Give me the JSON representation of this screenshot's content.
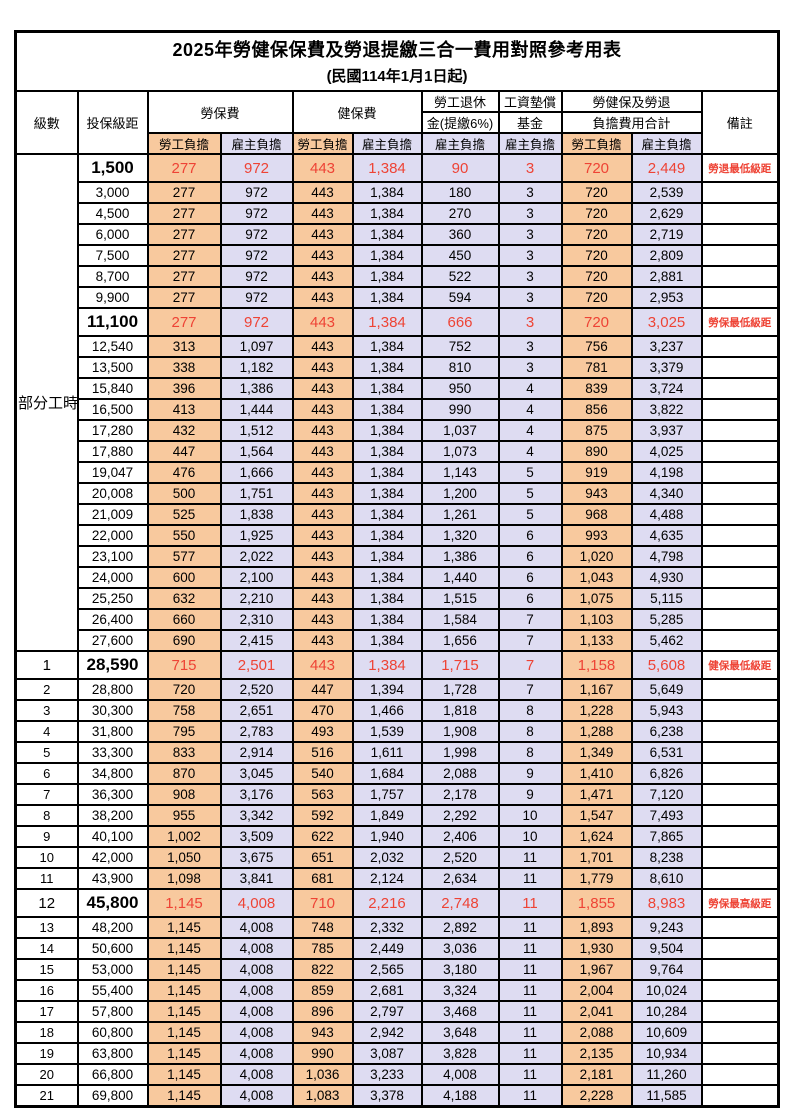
{
  "title": "2025年勞健保保費及勞退提繳三合一費用對照參考用表",
  "subtitle": "(民國114年1月1日起)",
  "header": {
    "level": "級數",
    "bracket": "投保級距",
    "labor": "勞保費",
    "health": "健保費",
    "pension_line1": "勞工退休",
    "pension_line2": "金(提繳6%)",
    "wage_line1": "工資墊償",
    "wage_line2": "基金",
    "total_line1": "勞健保及勞退",
    "total_line2": "負擔費用合計",
    "remark": "備註",
    "employee": "勞工負擔",
    "employer": "雇主負擔"
  },
  "part_time_label": "部分工時",
  "part_time_rowspan": 23,
  "column_fill_pattern": [
    "emp",
    "er",
    "emp",
    "er",
    "er",
    "er",
    "emp",
    "er"
  ],
  "colors": {
    "employee_bg": "#f8c99e",
    "employer_bg": "#dedcf2",
    "highlight_red": "#ee4335",
    "border": "#000000"
  },
  "rows": [
    {
      "level": "",
      "bracket": "1,500",
      "cells": [
        "277",
        "972",
        "443",
        "1,384",
        "90",
        "3",
        "720",
        "2,449"
      ],
      "remark": "勞退最低級距",
      "special": true
    },
    {
      "level": "",
      "bracket": "3,000",
      "cells": [
        "277",
        "972",
        "443",
        "1,384",
        "180",
        "3",
        "720",
        "2,539"
      ],
      "remark": "",
      "special": false
    },
    {
      "level": "",
      "bracket": "4,500",
      "cells": [
        "277",
        "972",
        "443",
        "1,384",
        "270",
        "3",
        "720",
        "2,629"
      ],
      "remark": "",
      "special": false
    },
    {
      "level": "",
      "bracket": "6,000",
      "cells": [
        "277",
        "972",
        "443",
        "1,384",
        "360",
        "3",
        "720",
        "2,719"
      ],
      "remark": "",
      "special": false
    },
    {
      "level": "",
      "bracket": "7,500",
      "cells": [
        "277",
        "972",
        "443",
        "1,384",
        "450",
        "3",
        "720",
        "2,809"
      ],
      "remark": "",
      "special": false
    },
    {
      "level": "",
      "bracket": "8,700",
      "cells": [
        "277",
        "972",
        "443",
        "1,384",
        "522",
        "3",
        "720",
        "2,881"
      ],
      "remark": "",
      "special": false
    },
    {
      "level": "",
      "bracket": "9,900",
      "cells": [
        "277",
        "972",
        "443",
        "1,384",
        "594",
        "3",
        "720",
        "2,953"
      ],
      "remark": "",
      "special": false
    },
    {
      "level": "",
      "bracket": "11,100",
      "cells": [
        "277",
        "972",
        "443",
        "1,384",
        "666",
        "3",
        "720",
        "3,025"
      ],
      "remark": "勞保最低級距",
      "special": true
    },
    {
      "level": "",
      "bracket": "12,540",
      "cells": [
        "313",
        "1,097",
        "443",
        "1,384",
        "752",
        "3",
        "756",
        "3,237"
      ],
      "remark": "",
      "special": false
    },
    {
      "level": "",
      "bracket": "13,500",
      "cells": [
        "338",
        "1,182",
        "443",
        "1,384",
        "810",
        "3",
        "781",
        "3,379"
      ],
      "remark": "",
      "special": false
    },
    {
      "level": "",
      "bracket": "15,840",
      "cells": [
        "396",
        "1,386",
        "443",
        "1,384",
        "950",
        "4",
        "839",
        "3,724"
      ],
      "remark": "",
      "special": false
    },
    {
      "level": "",
      "bracket": "16,500",
      "cells": [
        "413",
        "1,444",
        "443",
        "1,384",
        "990",
        "4",
        "856",
        "3,822"
      ],
      "remark": "",
      "special": false
    },
    {
      "level": "",
      "bracket": "17,280",
      "cells": [
        "432",
        "1,512",
        "443",
        "1,384",
        "1,037",
        "4",
        "875",
        "3,937"
      ],
      "remark": "",
      "special": false
    },
    {
      "level": "",
      "bracket": "17,880",
      "cells": [
        "447",
        "1,564",
        "443",
        "1,384",
        "1,073",
        "4",
        "890",
        "4,025"
      ],
      "remark": "",
      "special": false
    },
    {
      "level": "",
      "bracket": "19,047",
      "cells": [
        "476",
        "1,666",
        "443",
        "1,384",
        "1,143",
        "5",
        "919",
        "4,198"
      ],
      "remark": "",
      "special": false
    },
    {
      "level": "",
      "bracket": "20,008",
      "cells": [
        "500",
        "1,751",
        "443",
        "1,384",
        "1,200",
        "5",
        "943",
        "4,340"
      ],
      "remark": "",
      "special": false
    },
    {
      "level": "",
      "bracket": "21,009",
      "cells": [
        "525",
        "1,838",
        "443",
        "1,384",
        "1,261",
        "5",
        "968",
        "4,488"
      ],
      "remark": "",
      "special": false
    },
    {
      "level": "",
      "bracket": "22,000",
      "cells": [
        "550",
        "1,925",
        "443",
        "1,384",
        "1,320",
        "6",
        "993",
        "4,635"
      ],
      "remark": "",
      "special": false
    },
    {
      "level": "",
      "bracket": "23,100",
      "cells": [
        "577",
        "2,022",
        "443",
        "1,384",
        "1,386",
        "6",
        "1,020",
        "4,798"
      ],
      "remark": "",
      "special": false
    },
    {
      "level": "",
      "bracket": "24,000",
      "cells": [
        "600",
        "2,100",
        "443",
        "1,384",
        "1,440",
        "6",
        "1,043",
        "4,930"
      ],
      "remark": "",
      "special": false
    },
    {
      "level": "",
      "bracket": "25,250",
      "cells": [
        "632",
        "2,210",
        "443",
        "1,384",
        "1,515",
        "6",
        "1,075",
        "5,115"
      ],
      "remark": "",
      "special": false
    },
    {
      "level": "",
      "bracket": "26,400",
      "cells": [
        "660",
        "2,310",
        "443",
        "1,384",
        "1,584",
        "7",
        "1,103",
        "5,285"
      ],
      "remark": "",
      "special": false
    },
    {
      "level": "",
      "bracket": "27,600",
      "cells": [
        "690",
        "2,415",
        "443",
        "1,384",
        "1,656",
        "7",
        "1,133",
        "5,462"
      ],
      "remark": "",
      "special": false
    },
    {
      "level": "1",
      "bracket": "28,590",
      "cells": [
        "715",
        "2,501",
        "443",
        "1,384",
        "1,715",
        "7",
        "1,158",
        "5,608"
      ],
      "remark": "健保最低級距",
      "special": true
    },
    {
      "level": "2",
      "bracket": "28,800",
      "cells": [
        "720",
        "2,520",
        "447",
        "1,394",
        "1,728",
        "7",
        "1,167",
        "5,649"
      ],
      "remark": "",
      "special": false
    },
    {
      "level": "3",
      "bracket": "30,300",
      "cells": [
        "758",
        "2,651",
        "470",
        "1,466",
        "1,818",
        "8",
        "1,228",
        "5,943"
      ],
      "remark": "",
      "special": false
    },
    {
      "level": "4",
      "bracket": "31,800",
      "cells": [
        "795",
        "2,783",
        "493",
        "1,539",
        "1,908",
        "8",
        "1,288",
        "6,238"
      ],
      "remark": "",
      "special": false
    },
    {
      "level": "5",
      "bracket": "33,300",
      "cells": [
        "833",
        "2,914",
        "516",
        "1,611",
        "1,998",
        "8",
        "1,349",
        "6,531"
      ],
      "remark": "",
      "special": false
    },
    {
      "level": "6",
      "bracket": "34,800",
      "cells": [
        "870",
        "3,045",
        "540",
        "1,684",
        "2,088",
        "9",
        "1,410",
        "6,826"
      ],
      "remark": "",
      "special": false
    },
    {
      "level": "7",
      "bracket": "36,300",
      "cells": [
        "908",
        "3,176",
        "563",
        "1,757",
        "2,178",
        "9",
        "1,471",
        "7,120"
      ],
      "remark": "",
      "special": false
    },
    {
      "level": "8",
      "bracket": "38,200",
      "cells": [
        "955",
        "3,342",
        "592",
        "1,849",
        "2,292",
        "10",
        "1,547",
        "7,493"
      ],
      "remark": "",
      "special": false
    },
    {
      "level": "9",
      "bracket": "40,100",
      "cells": [
        "1,002",
        "3,509",
        "622",
        "1,940",
        "2,406",
        "10",
        "1,624",
        "7,865"
      ],
      "remark": "",
      "special": false
    },
    {
      "level": "10",
      "bracket": "42,000",
      "cells": [
        "1,050",
        "3,675",
        "651",
        "2,032",
        "2,520",
        "11",
        "1,701",
        "8,238"
      ],
      "remark": "",
      "special": false
    },
    {
      "level": "11",
      "bracket": "43,900",
      "cells": [
        "1,098",
        "3,841",
        "681",
        "2,124",
        "2,634",
        "11",
        "1,779",
        "8,610"
      ],
      "remark": "",
      "special": false
    },
    {
      "level": "12",
      "bracket": "45,800",
      "cells": [
        "1,145",
        "4,008",
        "710",
        "2,216",
        "2,748",
        "11",
        "1,855",
        "8,983"
      ],
      "remark": "勞保最高級距",
      "special": true
    },
    {
      "level": "13",
      "bracket": "48,200",
      "cells": [
        "1,145",
        "4,008",
        "748",
        "2,332",
        "2,892",
        "11",
        "1,893",
        "9,243"
      ],
      "remark": "",
      "special": false
    },
    {
      "level": "14",
      "bracket": "50,600",
      "cells": [
        "1,145",
        "4,008",
        "785",
        "2,449",
        "3,036",
        "11",
        "1,930",
        "9,504"
      ],
      "remark": "",
      "special": false
    },
    {
      "level": "15",
      "bracket": "53,000",
      "cells": [
        "1,145",
        "4,008",
        "822",
        "2,565",
        "3,180",
        "11",
        "1,967",
        "9,764"
      ],
      "remark": "",
      "special": false
    },
    {
      "level": "16",
      "bracket": "55,400",
      "cells": [
        "1,145",
        "4,008",
        "859",
        "2,681",
        "3,324",
        "11",
        "2,004",
        "10,024"
      ],
      "remark": "",
      "special": false
    },
    {
      "level": "17",
      "bracket": "57,800",
      "cells": [
        "1,145",
        "4,008",
        "896",
        "2,797",
        "3,468",
        "11",
        "2,041",
        "10,284"
      ],
      "remark": "",
      "special": false
    },
    {
      "level": "18",
      "bracket": "60,800",
      "cells": [
        "1,145",
        "4,008",
        "943",
        "2,942",
        "3,648",
        "11",
        "2,088",
        "10,609"
      ],
      "remark": "",
      "special": false
    },
    {
      "level": "19",
      "bracket": "63,800",
      "cells": [
        "1,145",
        "4,008",
        "990",
        "3,087",
        "3,828",
        "11",
        "2,135",
        "10,934"
      ],
      "remark": "",
      "special": false
    },
    {
      "level": "20",
      "bracket": "66,800",
      "cells": [
        "1,145",
        "4,008",
        "1,036",
        "3,233",
        "4,008",
        "11",
        "2,181",
        "11,260"
      ],
      "remark": "",
      "special": false
    },
    {
      "level": "21",
      "bracket": "69,800",
      "cells": [
        "1,145",
        "4,008",
        "1,083",
        "3,378",
        "4,188",
        "11",
        "2,228",
        "11,585"
      ],
      "remark": "",
      "special": false
    }
  ]
}
